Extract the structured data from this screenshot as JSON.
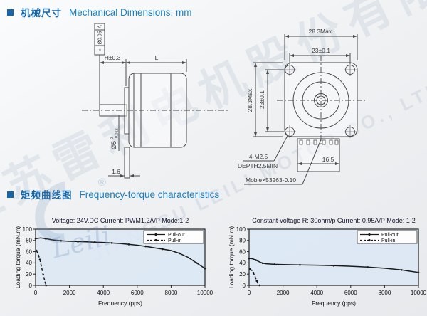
{
  "sections": {
    "mechanical": {
      "cn": "机械尺寸",
      "en": "Mechanical Dimensions: mm"
    },
    "torque": {
      "cn": "矩频曲线图",
      "en": "Frequency-torque characteristics"
    }
  },
  "watermark": {
    "cn": "江苏雷利电机股份有限公司",
    "en": "JIANGSU LEILI MOTOR CO., LTD.",
    "script": "Leili",
    "registered": "®"
  },
  "side_view": {
    "tolerance_frame": {
      "symbol": "○",
      "value": "Ø0.05",
      "datum": "A"
    },
    "dim_h": "H±0.3",
    "dim_l": "L",
    "shaft_dia": "Ø5",
    "shaft_tol_upper": "0",
    "shaft_tol_lower": "-0.012",
    "dim_flange": "1.6"
  },
  "front_view": {
    "dim_width": "28.3Max.",
    "dim_hole_h": "23±0.1",
    "dim_height": "28.3Max.",
    "dim_hole_v": "23±0.1",
    "screw_label": "4-M2.5",
    "depth_label": "DEPTH2.5MIN",
    "connector_label": "Moble×53263-0.10",
    "dim_connector": "16.5"
  },
  "chart_data": [
    {
      "type": "line",
      "title": "Voltage: 24V.DC Current: PWM1.2A/P Mode:1-2",
      "xlabel": "Frequency (pps)",
      "ylabel": "Loading torque (mN.m)",
      "xlim": [
        0,
        10000
      ],
      "ylim": [
        0,
        100
      ],
      "xticks": [
        0,
        2000,
        4000,
        6000,
        8000,
        10000
      ],
      "yticks": [
        0,
        20,
        40,
        60,
        80,
        100
      ],
      "plot_bg": "#dce8f4",
      "legend_position": "top-right",
      "series": [
        {
          "name": "Pull-out",
          "dashed": false,
          "x": [
            0,
            300,
            600,
            1000,
            1500,
            2000,
            2500,
            3000,
            3500,
            4000,
            4500,
            5000,
            5500,
            6000,
            6500,
            7000,
            7500,
            8000,
            8500,
            9000,
            9500,
            10000
          ],
          "y": [
            83,
            84.5,
            83,
            81,
            79.5,
            78.5,
            78,
            77.5,
            77,
            76.5,
            75.5,
            74.5,
            73,
            71.5,
            69.5,
            67,
            64.5,
            62,
            57,
            50,
            40,
            30
          ]
        },
        {
          "name": "Pull-in",
          "dashed": true,
          "x": [
            50,
            150,
            250,
            350,
            450,
            550,
            620
          ],
          "y": [
            62,
            56,
            46,
            33,
            19,
            7,
            0
          ]
        }
      ]
    },
    {
      "type": "line",
      "title": "Constant-voltage R: 30ohm/p Current: 0.95A/P Mode: 1-2",
      "xlabel": "Frequency (pps)",
      "ylabel": "Loading torque (mN.m)",
      "xlim": [
        0,
        10000
      ],
      "ylim": [
        0,
        100
      ],
      "xticks": [
        0,
        2000,
        4000,
        6000,
        8000,
        10000
      ],
      "yticks": [
        0,
        20,
        40,
        60,
        80,
        100
      ],
      "plot_bg": "#dce8f4",
      "legend_position": "top-right",
      "series": [
        {
          "name": "Pull-out",
          "dashed": false,
          "x": [
            0,
            200,
            400,
            600,
            800,
            1000,
            1500,
            2000,
            3000,
            4000,
            5000,
            6000,
            7000,
            8000,
            9000,
            10000
          ],
          "y": [
            48,
            47.5,
            45,
            42,
            39.5,
            38.5,
            37.5,
            37,
            36.5,
            36,
            35,
            34,
            32.5,
            30.5,
            27.5,
            23
          ]
        },
        {
          "name": "Pull-in",
          "dashed": true,
          "x": [
            50,
            150,
            250,
            350,
            450,
            550,
            620
          ],
          "y": [
            29,
            27,
            22.5,
            16,
            8,
            2,
            0
          ]
        }
      ]
    }
  ]
}
